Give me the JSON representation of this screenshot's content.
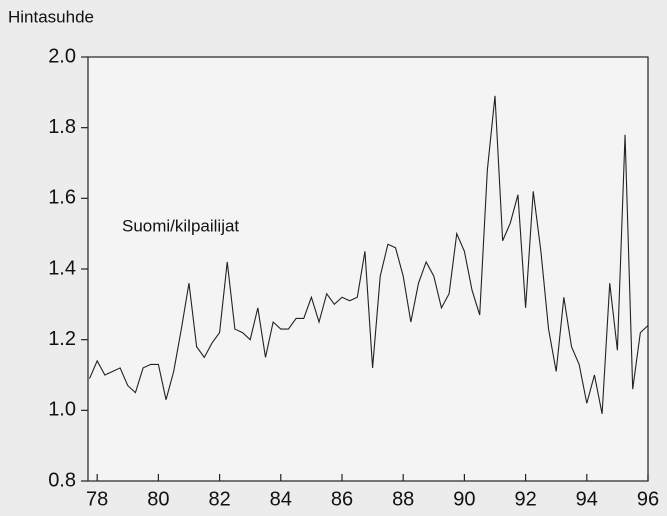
{
  "chart_data": {
    "type": "line",
    "title": "Hintasuhde",
    "annotation": "Suomi/kilpailijat",
    "x": [
      77.75,
      78,
      78.25,
      78.5,
      78.75,
      79,
      79.25,
      79.5,
      79.75,
      80,
      80.25,
      80.5,
      80.75,
      81,
      81.25,
      81.5,
      81.75,
      82,
      82.25,
      82.5,
      82.75,
      83,
      83.25,
      83.5,
      83.75,
      84,
      84.25,
      84.5,
      84.75,
      85,
      85.25,
      85.5,
      85.75,
      86,
      86.25,
      86.5,
      86.75,
      87,
      87.25,
      87.5,
      87.75,
      88,
      88.25,
      88.5,
      88.75,
      89,
      89.25,
      89.5,
      89.75,
      90,
      90.25,
      90.5,
      90.75,
      91,
      91.25,
      91.5,
      91.75,
      92,
      92.25,
      92.5,
      92.75,
      93,
      93.25,
      93.5,
      93.75,
      94,
      94.25,
      94.5,
      94.75,
      95,
      95.25,
      95.5,
      95.75,
      96
    ],
    "series": [
      {
        "name": "Suomi/kilpailijat",
        "color": "#222222",
        "values": [
          1.09,
          1.14,
          1.1,
          1.11,
          1.12,
          1.07,
          1.05,
          1.12,
          1.13,
          1.13,
          1.03,
          1.11,
          1.23,
          1.36,
          1.18,
          1.15,
          1.19,
          1.22,
          1.42,
          1.23,
          1.22,
          1.2,
          1.29,
          1.15,
          1.25,
          1.23,
          1.23,
          1.26,
          1.26,
          1.32,
          1.25,
          1.33,
          1.3,
          1.32,
          1.31,
          1.32,
          1.45,
          1.12,
          1.38,
          1.47,
          1.46,
          1.38,
          1.25,
          1.36,
          1.42,
          1.38,
          1.29,
          1.33,
          1.5,
          1.45,
          1.34,
          1.27,
          1.68,
          1.89,
          1.48,
          1.53,
          1.61,
          1.29,
          1.62,
          1.45,
          1.23,
          1.11,
          1.32,
          1.18,
          1.13,
          1.02,
          1.1,
          0.99,
          1.36,
          1.17,
          1.78,
          1.06,
          1.22,
          1.24
        ]
      }
    ],
    "xlim": [
      77.7,
      96
    ],
    "xticks": [
      78,
      80,
      82,
      84,
      86,
      88,
      90,
      92,
      94,
      96
    ],
    "ylim": [
      0.8,
      2.0
    ],
    "yticks": [
      0.8,
      {
        "value": 1.0,
        "label": "1.0"
      },
      1.2,
      1.4,
      1.6,
      1.8,
      {
        "value": 2.0,
        "label": "2.0"
      }
    ]
  }
}
